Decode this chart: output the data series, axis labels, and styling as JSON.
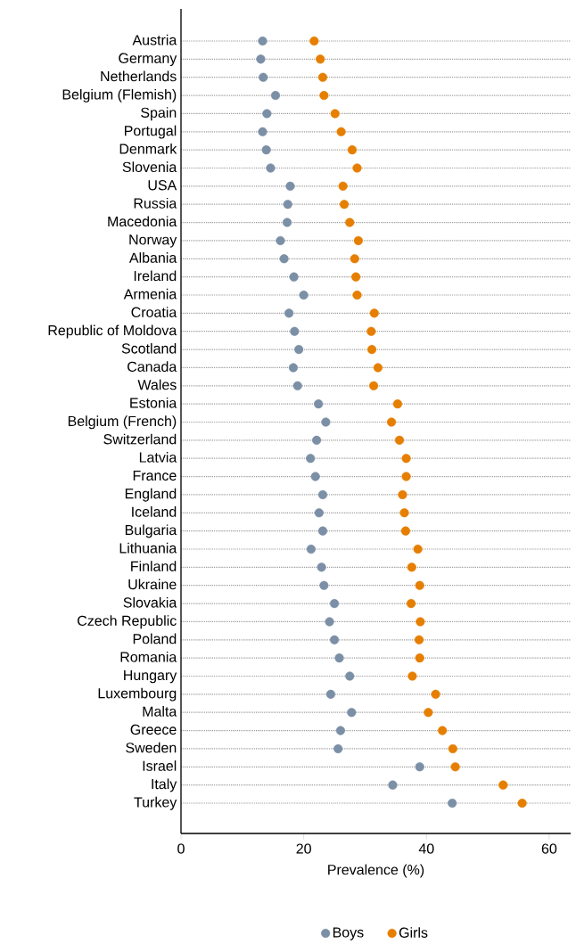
{
  "chart_data": {
    "type": "scatter",
    "xlabel": "Prevalence (%)",
    "categories": [
      "Austria",
      "Germany",
      "Netherlands",
      "Belgium (Flemish)",
      "Spain",
      "Portugal",
      "Denmark",
      "Slovenia",
      "USA",
      "Russia",
      "Macedonia",
      "Norway",
      "Albania",
      "Ireland",
      "Armenia",
      "Croatia",
      "Republic of Moldova",
      "Scotland",
      "Canada",
      "Wales",
      "Estonia",
      "Belgium (French)",
      "Switzerland",
      "Latvia",
      "France",
      "England",
      "Iceland",
      "Bulgaria",
      "Lithuania",
      "Finland",
      "Ukraine",
      "Slovakia",
      "Czech Republic",
      "Poland",
      "Romania",
      "Hungary",
      "Luxembourg",
      "Malta",
      "Greece",
      "Sweden",
      "Israel",
      "Italy",
      "Turkey"
    ],
    "orientation": "horizontal",
    "series": [
      {
        "name": "Boys",
        "color": "#7b8fa6",
        "values": [
          13.3,
          13.0,
          13.4,
          15.4,
          14.0,
          13.3,
          13.9,
          14.6,
          17.8,
          17.4,
          17.3,
          16.2,
          16.8,
          18.4,
          20.0,
          17.6,
          18.5,
          19.2,
          18.3,
          19.0,
          22.4,
          23.6,
          22.1,
          21.1,
          21.9,
          23.1,
          22.5,
          23.1,
          21.2,
          22.9,
          23.3,
          25.0,
          24.2,
          25.0,
          25.8,
          27.5,
          24.4,
          27.8,
          26.0,
          25.6,
          38.9,
          34.5,
          44.2
        ]
      },
      {
        "name": "Girls",
        "color": "#e67e00",
        "values": [
          21.7,
          22.7,
          23.1,
          23.3,
          25.1,
          26.1,
          27.9,
          28.7,
          26.4,
          26.6,
          27.5,
          28.9,
          28.3,
          28.5,
          28.7,
          31.5,
          31.0,
          31.1,
          32.1,
          31.4,
          35.3,
          34.3,
          35.6,
          36.7,
          36.7,
          36.1,
          36.4,
          36.6,
          38.6,
          37.6,
          38.9,
          37.5,
          39.0,
          38.8,
          38.9,
          37.7,
          41.5,
          40.3,
          42.6,
          44.3,
          44.7,
          52.5,
          55.6
        ]
      }
    ],
    "xlim": [
      0,
      63.5
    ],
    "xticks": [
      0,
      20,
      40,
      60
    ],
    "grid": "y",
    "legend": "bottom"
  }
}
